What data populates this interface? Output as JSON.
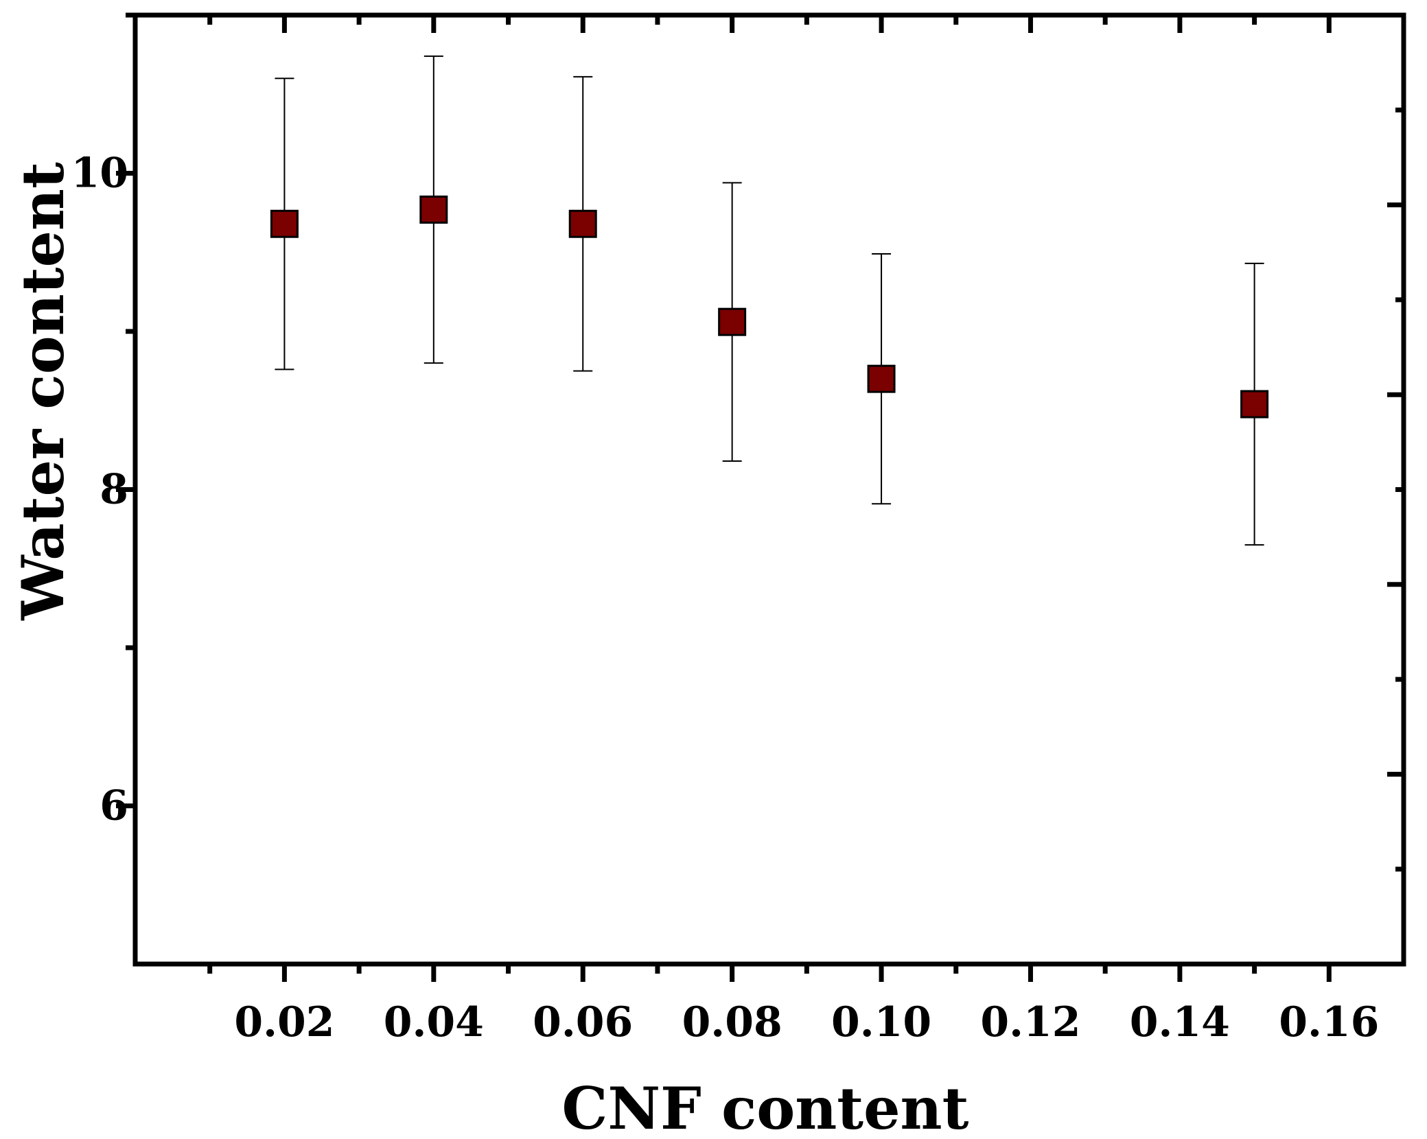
{
  "chart_data": {
    "type": "scatter",
    "title": "",
    "xlabel": "CNF content",
    "ylabel": "Water content",
    "xlim": [
      0.0,
      0.17
    ],
    "ylim": [
      5.0,
      11.0
    ],
    "x_ticks": [
      0.02,
      0.04,
      0.06,
      0.08,
      0.1,
      0.12,
      0.14,
      0.16
    ],
    "x_tick_labels": [
      "0.02",
      "0.04",
      "0.06",
      "0.08",
      "0.10",
      "0.12",
      "0.14",
      "0.16"
    ],
    "x_minor_ticks": [
      0.01,
      0.03,
      0.05,
      0.07,
      0.09,
      0.11,
      0.13,
      0.15
    ],
    "y_ticks": [
      6,
      8,
      10
    ],
    "y_tick_labels": [
      "6",
      "8",
      "10"
    ],
    "y_minor_ticks": [
      7,
      9,
      11
    ],
    "right_axis_ticks": [
      5.6,
      6.2,
      6.8,
      7.4,
      8.0,
      8.6,
      9.2,
      9.8,
      10.4
    ],
    "grid": false,
    "marker": "square",
    "marker_color": "#7b0000",
    "points": [
      {
        "x": 0.02,
        "y": 9.68,
        "error": 0.92
      },
      {
        "x": 0.04,
        "y": 9.77,
        "error": 0.97
      },
      {
        "x": 0.06,
        "y": 9.68,
        "error": 0.93
      },
      {
        "x": 0.08,
        "y": 9.06,
        "error": 0.88
      },
      {
        "x": 0.1,
        "y": 8.7,
        "error": 0.79
      },
      {
        "x": 0.15,
        "y": 8.54,
        "error": 0.89
      }
    ]
  }
}
